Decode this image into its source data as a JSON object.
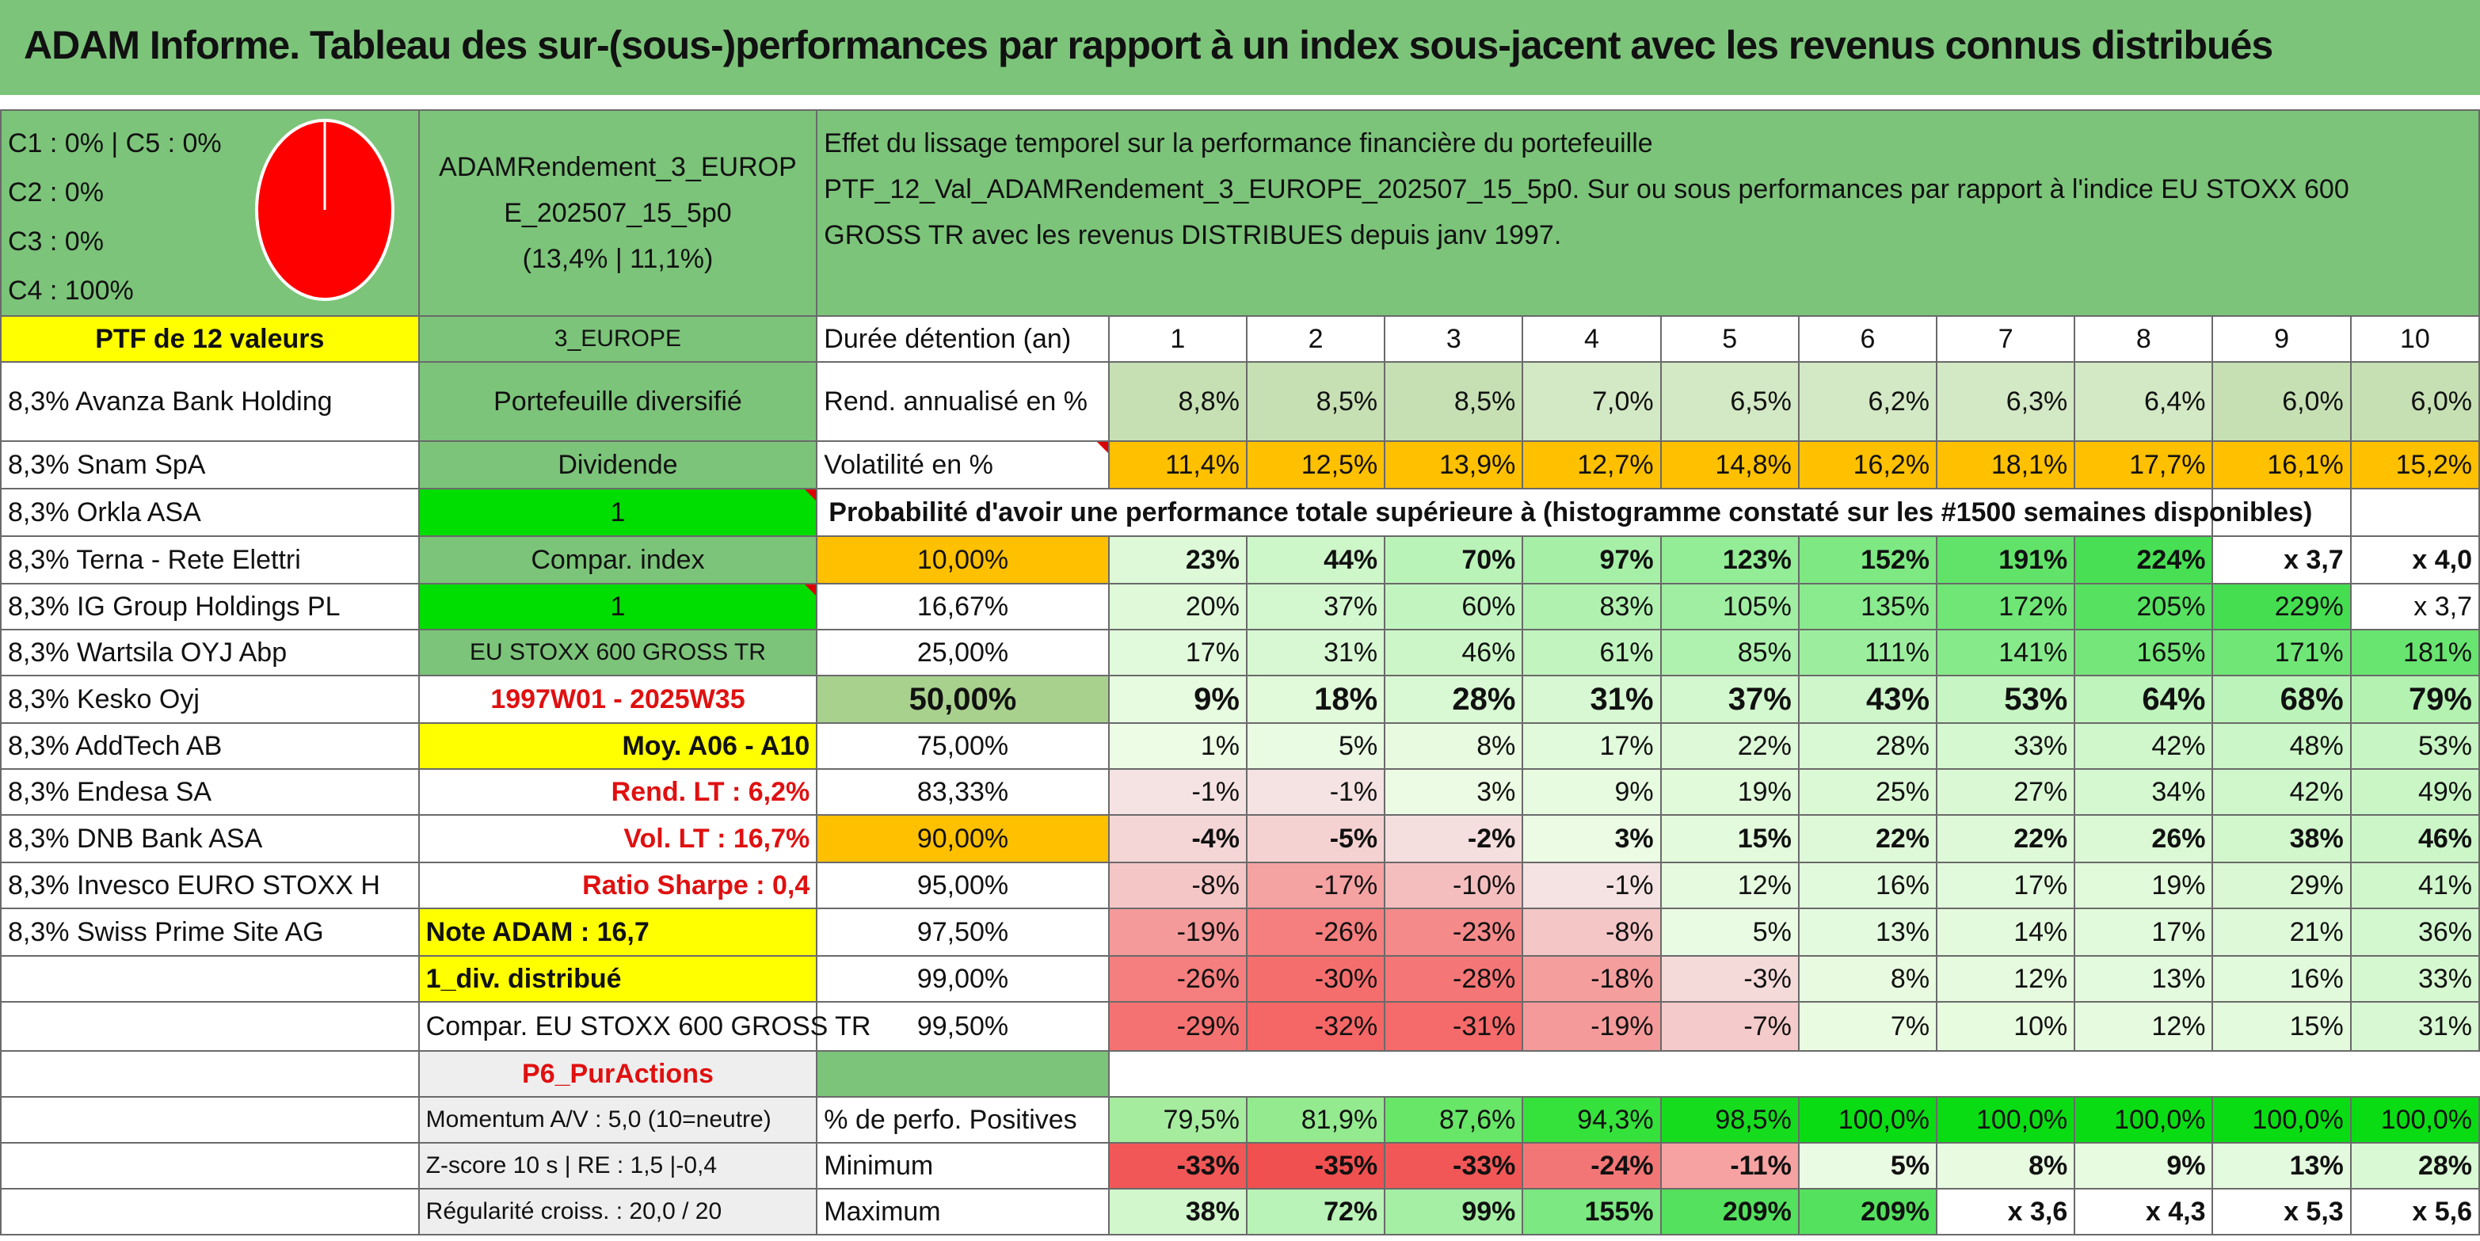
{
  "title": "ADAM Informe. Tableau des sur-(sous-)performances par rapport à un index sous-jacent avec les revenus connus distribués",
  "classes": [
    "C1 : 0% | C5 : 0%",
    "C2 : 0%",
    "C3 : 0%",
    "C4 : 100%"
  ],
  "pie": {
    "color": "#ff0000",
    "c4_share": 1.0
  },
  "portfolio": {
    "name": "ADAMRendement_3_EUROPE_202507_15_5p0",
    "name_line1": "ADAMRendement_3_EUROP",
    "name_line2": "E_202507_15_5p0",
    "stats": "(13,4% | 11,1%)"
  },
  "description": {
    "line1": "Effet du lissage temporel sur la performance financière du portefeuille",
    "line2": "PTF_12_Val_ADAMRendement_3_EUROPE_202507_15_5p0. Sur ou sous performances par rapport à l'indice EU STOXX 600",
    "line3": "GROSS TR avec les revenus DISTRIBUES depuis janv 1997."
  },
  "ptf_label": "PTF de 12 valeurs",
  "region": "3_EUROPE",
  "holdings": [
    "8,3% Avanza Bank Holding",
    "8,3% Snam SpA",
    "8,3% Orkla ASA",
    "8,3% Terna - Rete Elettri",
    "8,3% IG Group Holdings PL",
    "8,3% Wartsila OYJ Abp",
    "8,3% Kesko Oyj",
    "8,3% AddTech AB",
    "8,3% Endesa SA",
    "8,3% DNB Bank ASA",
    "8,3% Invesco EURO STOXX H",
    "8,3% Swiss Prime Site AG"
  ],
  "side": {
    "diversified": "Portefeuille diversifié",
    "dividend": "Dividende",
    "dividend_value": "1",
    "compar_index": "Compar. index",
    "compar_value": "1",
    "index_name": "EU STOXX 600 GROSS TR",
    "period": "1997W01 - 2025W35",
    "moy": "Moy. A06 - A10",
    "rend_lt": "Rend. LT : 6,2%",
    "vol_lt": "Vol. LT : 16,7%",
    "sharpe": "Ratio Sharpe : 0,4",
    "note": "Note ADAM : 16,7",
    "div": "1_div. distribué",
    "compar_full": "Compar. EU STOXX 600 GROSS TR",
    "category": "P6_PurActions",
    "momentum": "Momentum A/V : 5,0 (10=neutre)",
    "zscore": "Z-score 10 s | RE : 1,5 |-0,4",
    "regularity": "Régularité croiss. : 20,0 / 20"
  },
  "table": {
    "duration_label": "Durée détention (an)",
    "years": [
      "1",
      "2",
      "3",
      "4",
      "5",
      "6",
      "7",
      "8",
      "9",
      "10"
    ],
    "rend_label": "Rend. annualisé en %",
    "rend": [
      "8,8%",
      "8,5%",
      "8,5%",
      "7,0%",
      "6,5%",
      "6,2%",
      "6,3%",
      "6,4%",
      "6,0%",
      "6,0%"
    ],
    "vol_label": "Volatilité en %",
    "vol": [
      "11,4%",
      "12,5%",
      "13,9%",
      "12,7%",
      "14,8%",
      "16,2%",
      "18,1%",
      "17,7%",
      "16,1%",
      "15,2%"
    ],
    "prob_label": "Probabilité d'avoir une performance totale supérieure à (histogramme constaté sur les #1500 semaines disponibles)",
    "prob_rows": [
      {
        "p": "10,00%",
        "vals": [
          "23%",
          "44%",
          "70%",
          "97%",
          "123%",
          "152%",
          "191%",
          "224%",
          "x 3,7",
          "x 4,0"
        ]
      },
      {
        "p": "16,67%",
        "vals": [
          "20%",
          "37%",
          "60%",
          "83%",
          "105%",
          "135%",
          "172%",
          "205%",
          "229%",
          "x 3,7"
        ]
      },
      {
        "p": "25,00%",
        "vals": [
          "17%",
          "31%",
          "46%",
          "61%",
          "85%",
          "111%",
          "141%",
          "165%",
          "171%",
          "181%"
        ]
      },
      {
        "p": "50,00%",
        "vals": [
          "9%",
          "18%",
          "28%",
          "31%",
          "37%",
          "43%",
          "53%",
          "64%",
          "68%",
          "79%"
        ]
      },
      {
        "p": "75,00%",
        "vals": [
          "1%",
          "5%",
          "8%",
          "17%",
          "22%",
          "28%",
          "33%",
          "42%",
          "48%",
          "53%"
        ]
      },
      {
        "p": "83,33%",
        "vals": [
          "-1%",
          "-1%",
          "3%",
          "9%",
          "19%",
          "25%",
          "27%",
          "34%",
          "42%",
          "49%"
        ]
      },
      {
        "p": "90,00%",
        "vals": [
          "-4%",
          "-5%",
          "-2%",
          "3%",
          "15%",
          "22%",
          "22%",
          "26%",
          "38%",
          "46%"
        ]
      },
      {
        "p": "95,00%",
        "vals": [
          "-8%",
          "-17%",
          "-10%",
          "-1%",
          "12%",
          "16%",
          "17%",
          "19%",
          "29%",
          "41%"
        ]
      },
      {
        "p": "97,50%",
        "vals": [
          "-19%",
          "-26%",
          "-23%",
          "-8%",
          "5%",
          "13%",
          "14%",
          "17%",
          "21%",
          "36%"
        ]
      },
      {
        "p": "99,00%",
        "vals": [
          "-26%",
          "-30%",
          "-28%",
          "-18%",
          "-3%",
          "8%",
          "12%",
          "13%",
          "16%",
          "33%"
        ]
      },
      {
        "p": "99,50%",
        "vals": [
          "-29%",
          "-32%",
          "-31%",
          "-19%",
          "-7%",
          "7%",
          "10%",
          "12%",
          "15%",
          "31%"
        ]
      }
    ],
    "pos_label": "% de perfo. Positives",
    "pos": [
      "79,5%",
      "81,9%",
      "87,6%",
      "94,3%",
      "98,5%",
      "100,0%",
      "100,0%",
      "100,0%",
      "100,0%",
      "100,0%"
    ],
    "min_label": "Minimum",
    "min": [
      "-33%",
      "-35%",
      "-33%",
      "-24%",
      "-11%",
      "5%",
      "8%",
      "9%",
      "13%",
      "28%"
    ],
    "max_label": "Maximum",
    "max": [
      "38%",
      "72%",
      "99%",
      "155%",
      "209%",
      "209%",
      "x 3,6",
      "x 4,3",
      "x 5,3",
      "x 5,6"
    ]
  },
  "colors": {
    "header_green": "#7cc47a",
    "yellow": "#ffff00",
    "bright_green": "#00dd00",
    "orange": "#ffc000",
    "red_text": "#e01010"
  }
}
